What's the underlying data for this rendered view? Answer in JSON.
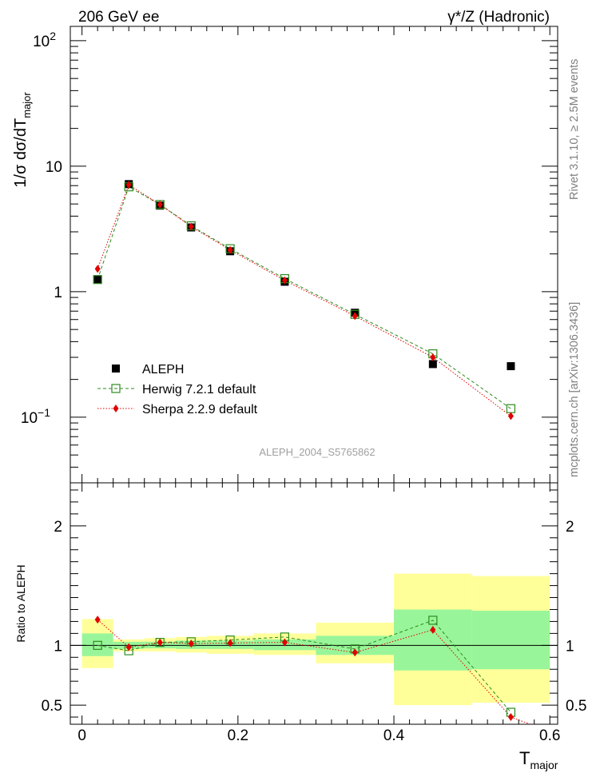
{
  "header": {
    "left": "206 GeV ee",
    "right": "γ*/Z (Hadronic)"
  },
  "side": {
    "rivet": "Rivet 3.1.10, ≥ 2.5M events",
    "mcplots": "mcplots.cern.ch [arXiv:1306.3436]"
  },
  "watermark": "ALEPH_2004_S5765862",
  "chart_data": [
    {
      "type": "scatter",
      "name": "main",
      "ylabel": "1/σ dσ/dT",
      "ylabel_sub": "major",
      "yscale": "log",
      "ylim": [
        0.03,
        130
      ],
      "xlim": [
        -0.015,
        0.61
      ],
      "yticks": [
        {
          "v": 100,
          "base": "10",
          "exp": "2"
        },
        {
          "v": 10,
          "base": "10",
          "exp": ""
        },
        {
          "v": 1,
          "base": "1",
          "exp": ""
        },
        {
          "v": 0.1,
          "base": "10",
          "exp": "−1"
        }
      ],
      "legend_position": "bottom-left",
      "series": [
        {
          "name": "ALEPH",
          "color": "#000000",
          "marker": "filled-square",
          "x": [
            0.02,
            0.06,
            0.1,
            0.14,
            0.19,
            0.26,
            0.35,
            0.45,
            0.55
          ],
          "y": [
            1.25,
            7.2,
            4.85,
            3.25,
            2.1,
            1.2,
            0.68,
            0.265,
            0.255
          ]
        },
        {
          "name": "Herwig 7.2.1 default",
          "color": "#2e8b1e",
          "marker": "open-square",
          "x": [
            0.02,
            0.06,
            0.1,
            0.14,
            0.19,
            0.26,
            0.35,
            0.45,
            0.55
          ],
          "y": [
            1.25,
            6.85,
            4.95,
            3.35,
            2.2,
            1.27,
            0.66,
            0.32,
            0.117
          ]
        },
        {
          "name": "Sherpa 2.2.9 default",
          "color": "#e00000",
          "marker": "diamond",
          "x": [
            0.02,
            0.06,
            0.1,
            0.14,
            0.19,
            0.26,
            0.35,
            0.45,
            0.55
          ],
          "y": [
            1.52,
            7.1,
            4.95,
            3.3,
            2.15,
            1.23,
            0.64,
            0.3,
            0.102
          ]
        }
      ]
    },
    {
      "type": "scatter",
      "name": "ratio",
      "ylabel": "Ratio to ALEPH",
      "ylim": [
        0.34,
        2.36
      ],
      "xlim": [
        -0.015,
        0.61
      ],
      "yticks": [
        0.5,
        1,
        2
      ],
      "xticks": [
        0,
        0.2,
        0.4,
        0.6
      ],
      "xlabel": "T",
      "xlabel_sub": "major",
      "reference_line": 1,
      "bands": [
        {
          "x0": 0.0,
          "x1": 0.04,
          "yellow": [
            0.81,
            1.22
          ],
          "green": [
            0.91,
            1.1
          ]
        },
        {
          "x0": 0.04,
          "x1": 0.08,
          "yellow": [
            0.95,
            1.05
          ],
          "green": [
            0.97,
            1.03
          ]
        },
        {
          "x0": 0.08,
          "x1": 0.12,
          "yellow": [
            0.95,
            1.06
          ],
          "green": [
            0.975,
            1.03
          ]
        },
        {
          "x0": 0.12,
          "x1": 0.16,
          "yellow": [
            0.94,
            1.07
          ],
          "green": [
            0.97,
            1.04
          ]
        },
        {
          "x0": 0.16,
          "x1": 0.22,
          "yellow": [
            0.93,
            1.08
          ],
          "green": [
            0.97,
            1.04
          ]
        },
        {
          "x0": 0.22,
          "x1": 0.3,
          "yellow": [
            0.92,
            1.1
          ],
          "green": [
            0.96,
            1.05
          ]
        },
        {
          "x0": 0.3,
          "x1": 0.4,
          "yellow": [
            0.85,
            1.19
          ],
          "green": [
            0.92,
            1.08
          ]
        },
        {
          "x0": 0.4,
          "x1": 0.5,
          "yellow": [
            0.5,
            1.6
          ],
          "green": [
            0.79,
            1.3
          ]
        },
        {
          "x0": 0.5,
          "x1": 0.6,
          "yellow": [
            0.52,
            1.58
          ],
          "green": [
            0.8,
            1.29
          ]
        }
      ],
      "series": [
        {
          "name": "Herwig 7.2.1 default",
          "color": "#2e8b1e",
          "marker": "open-square",
          "x": [
            0.02,
            0.06,
            0.1,
            0.14,
            0.19,
            0.26,
            0.35,
            0.45,
            0.55
          ],
          "y": [
            1.0,
            0.955,
            1.025,
            1.03,
            1.045,
            1.07,
            0.97,
            1.21,
            0.44
          ]
        },
        {
          "name": "Sherpa 2.2.9 default",
          "color": "#e00000",
          "marker": "diamond",
          "x": [
            0.02,
            0.06,
            0.1,
            0.14,
            0.19,
            0.26,
            0.35,
            0.45,
            0.55,
            0.575
          ],
          "y": [
            1.215,
            0.985,
            1.025,
            1.015,
            1.02,
            1.025,
            0.94,
            1.13,
            0.4,
            0.34
          ]
        }
      ]
    }
  ]
}
